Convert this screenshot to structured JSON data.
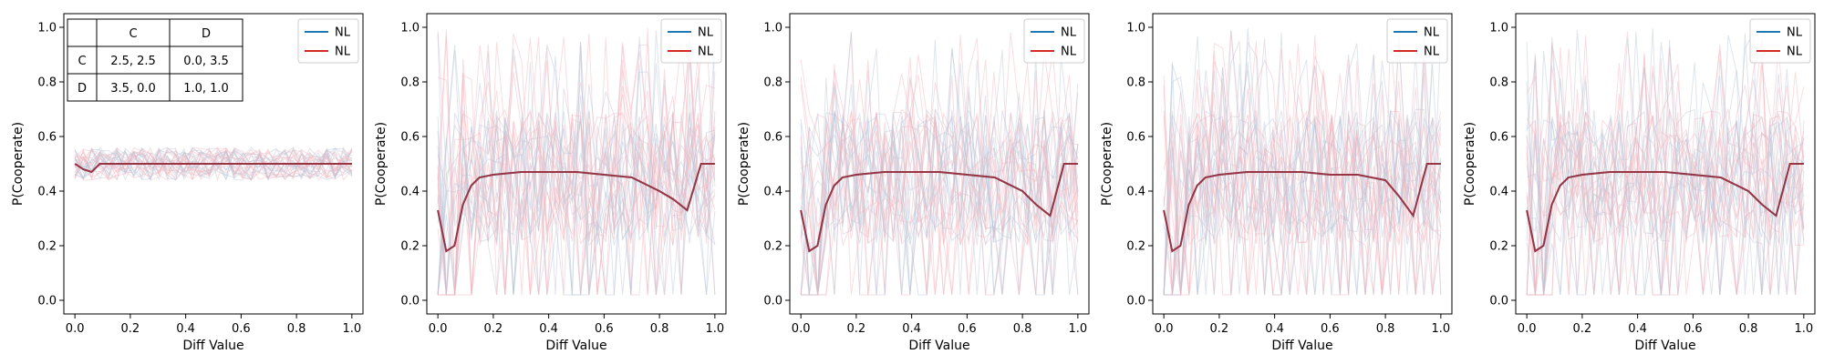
{
  "colors": {
    "blue": "#1f77b4",
    "red": "#d62728",
    "mean": "#9b2f3c",
    "blue_faint": "#b9c3d8",
    "red_faint": "#f2b4bc"
  },
  "payoff_table": {
    "col_headers": [
      "",
      "C",
      "D"
    ],
    "rows": [
      {
        "label": "C",
        "cells": [
          "2.5, 2.5",
          "0.0, 3.5"
        ]
      },
      {
        "label": "D",
        "cells": [
          "3.5, 0.0",
          "1.0, 1.0"
        ]
      }
    ]
  },
  "chart_data": [
    {
      "type": "line",
      "xlabel": "Diff Value",
      "ylabel": "P(Cooperate)",
      "xlim": [
        -0.04,
        1.04
      ],
      "ylim": [
        -0.05,
        1.05
      ],
      "xticks": [
        "0.0",
        "0.2",
        "0.4",
        "0.6",
        "0.8",
        "1.0"
      ],
      "yticks": [
        "0.0",
        "0.2",
        "0.4",
        "0.6",
        "0.8",
        "1.0"
      ],
      "legend": {
        "position": "top-right",
        "entries": [
          {
            "label": "NL",
            "color": "blue"
          },
          {
            "label": "NL",
            "color": "red"
          }
        ]
      },
      "has_payoff_table": true,
      "x": [
        0.0,
        0.03,
        0.06,
        0.09,
        0.12,
        0.15,
        0.2,
        0.3,
        0.4,
        0.5,
        0.6,
        0.7,
        0.8,
        0.9,
        0.95,
        1.0
      ],
      "series": [
        {
          "color": "blue",
          "values": [
            0.5,
            0.48,
            0.47,
            0.5,
            0.5,
            0.5,
            0.5,
            0.5,
            0.5,
            0.5,
            0.5,
            0.5,
            0.5,
            0.5,
            0.5,
            0.5
          ]
        },
        {
          "color": "red",
          "values": [
            0.5,
            0.48,
            0.47,
            0.5,
            0.5,
            0.5,
            0.5,
            0.5,
            0.5,
            0.5,
            0.5,
            0.5,
            0.5,
            0.5,
            0.5,
            0.5
          ]
        }
      ]
    },
    {
      "type": "line",
      "xlabel": "Diff Value",
      "ylabel": "P(Cooperate)",
      "xlim": [
        -0.04,
        1.04
      ],
      "ylim": [
        -0.05,
        1.05
      ],
      "xticks": [
        "0.0",
        "0.2",
        "0.4",
        "0.6",
        "0.8",
        "1.0"
      ],
      "yticks": [
        "0.0",
        "0.2",
        "0.4",
        "0.6",
        "0.8",
        "1.0"
      ],
      "legend": {
        "position": "top-right",
        "entries": [
          {
            "label": "NL",
            "color": "blue"
          },
          {
            "label": "NL",
            "color": "red"
          }
        ]
      },
      "has_payoff_table": false,
      "x": [
        0.0,
        0.03,
        0.06,
        0.09,
        0.12,
        0.15,
        0.2,
        0.3,
        0.4,
        0.5,
        0.6,
        0.7,
        0.8,
        0.85,
        0.9,
        0.95,
        1.0
      ],
      "series": [
        {
          "color": "blue",
          "values": [
            0.33,
            0.18,
            0.2,
            0.35,
            0.42,
            0.45,
            0.46,
            0.47,
            0.47,
            0.47,
            0.46,
            0.45,
            0.4,
            0.37,
            0.33,
            0.5,
            0.5
          ]
        },
        {
          "color": "red",
          "values": [
            0.33,
            0.18,
            0.2,
            0.35,
            0.42,
            0.45,
            0.46,
            0.47,
            0.47,
            0.47,
            0.46,
            0.45,
            0.4,
            0.37,
            0.33,
            0.5,
            0.5
          ]
        }
      ]
    },
    {
      "type": "line",
      "xlabel": "Diff Value",
      "ylabel": "P(Cooperate)",
      "xlim": [
        -0.04,
        1.04
      ],
      "ylim": [
        -0.05,
        1.05
      ],
      "xticks": [
        "0.0",
        "0.2",
        "0.4",
        "0.6",
        "0.8",
        "1.0"
      ],
      "yticks": [
        "0.0",
        "0.2",
        "0.4",
        "0.6",
        "0.8",
        "1.0"
      ],
      "legend": {
        "position": "top-right",
        "entries": [
          {
            "label": "NL",
            "color": "blue"
          },
          {
            "label": "NL",
            "color": "red"
          }
        ]
      },
      "has_payoff_table": false,
      "x": [
        0.0,
        0.03,
        0.06,
        0.09,
        0.12,
        0.15,
        0.2,
        0.3,
        0.4,
        0.5,
        0.6,
        0.7,
        0.8,
        0.85,
        0.9,
        0.95,
        1.0
      ],
      "series": [
        {
          "color": "blue",
          "values": [
            0.33,
            0.18,
            0.2,
            0.35,
            0.42,
            0.45,
            0.46,
            0.47,
            0.47,
            0.47,
            0.46,
            0.45,
            0.4,
            0.35,
            0.31,
            0.5,
            0.5
          ]
        },
        {
          "color": "red",
          "values": [
            0.33,
            0.18,
            0.2,
            0.35,
            0.42,
            0.45,
            0.46,
            0.47,
            0.47,
            0.47,
            0.46,
            0.45,
            0.4,
            0.35,
            0.31,
            0.5,
            0.5
          ]
        }
      ]
    },
    {
      "type": "line",
      "xlabel": "Diff Value",
      "ylabel": "P(Cooperate)",
      "xlim": [
        -0.04,
        1.04
      ],
      "ylim": [
        -0.05,
        1.05
      ],
      "xticks": [
        "0.0",
        "0.2",
        "0.4",
        "0.6",
        "0.8",
        "1.0"
      ],
      "yticks": [
        "0.0",
        "0.2",
        "0.4",
        "0.6",
        "0.8",
        "1.0"
      ],
      "legend": {
        "position": "top-right",
        "entries": [
          {
            "label": "NL",
            "color": "blue"
          },
          {
            "label": "NL",
            "color": "red"
          }
        ]
      },
      "has_payoff_table": false,
      "x": [
        0.0,
        0.03,
        0.06,
        0.09,
        0.12,
        0.15,
        0.2,
        0.3,
        0.4,
        0.5,
        0.6,
        0.7,
        0.8,
        0.85,
        0.9,
        0.95,
        1.0
      ],
      "series": [
        {
          "color": "blue",
          "values": [
            0.33,
            0.18,
            0.2,
            0.35,
            0.42,
            0.45,
            0.46,
            0.47,
            0.47,
            0.47,
            0.46,
            0.46,
            0.44,
            0.38,
            0.31,
            0.5,
            0.5
          ]
        },
        {
          "color": "red",
          "values": [
            0.33,
            0.18,
            0.2,
            0.35,
            0.42,
            0.45,
            0.46,
            0.47,
            0.47,
            0.47,
            0.46,
            0.46,
            0.44,
            0.38,
            0.31,
            0.5,
            0.5
          ]
        }
      ]
    },
    {
      "type": "line",
      "xlabel": "Diff Value",
      "ylabel": "P(Cooperate)",
      "xlim": [
        -0.04,
        1.04
      ],
      "ylim": [
        -0.05,
        1.05
      ],
      "xticks": [
        "0.0",
        "0.2",
        "0.4",
        "0.6",
        "0.8",
        "1.0"
      ],
      "yticks": [
        "0.0",
        "0.2",
        "0.4",
        "0.6",
        "0.8",
        "1.0"
      ],
      "legend": {
        "position": "top-right",
        "entries": [
          {
            "label": "NL",
            "color": "blue"
          },
          {
            "label": "NL",
            "color": "red"
          }
        ]
      },
      "has_payoff_table": false,
      "x": [
        0.0,
        0.03,
        0.06,
        0.09,
        0.12,
        0.15,
        0.2,
        0.3,
        0.4,
        0.5,
        0.6,
        0.7,
        0.8,
        0.85,
        0.9,
        0.95,
        1.0
      ],
      "series": [
        {
          "color": "blue",
          "values": [
            0.33,
            0.18,
            0.2,
            0.35,
            0.42,
            0.45,
            0.46,
            0.47,
            0.47,
            0.47,
            0.46,
            0.45,
            0.4,
            0.35,
            0.31,
            0.5,
            0.5
          ]
        },
        {
          "color": "red",
          "values": [
            0.33,
            0.18,
            0.2,
            0.35,
            0.42,
            0.45,
            0.46,
            0.47,
            0.47,
            0.47,
            0.46,
            0.45,
            0.4,
            0.35,
            0.31,
            0.5,
            0.5
          ]
        }
      ]
    }
  ]
}
